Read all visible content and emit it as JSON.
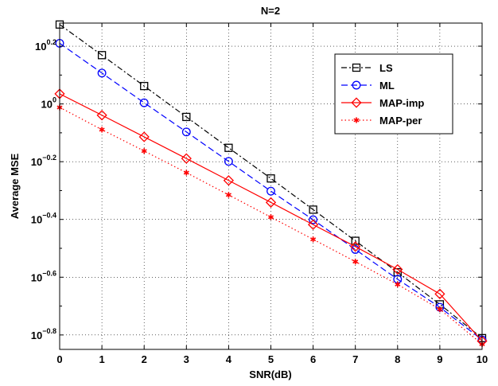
{
  "chart_data": {
    "type": "line",
    "title": "N=2",
    "xlabel": "SNR(dB)",
    "ylabel": "Average MSE",
    "x": [
      0,
      1,
      2,
      3,
      4,
      5,
      6,
      7,
      8,
      9,
      10
    ],
    "xlim": [
      0,
      10
    ],
    "xticks": [
      "0",
      "1",
      "2",
      "3",
      "4",
      "5",
      "6",
      "7",
      "8",
      "9",
      "10"
    ],
    "ylim_log10": [
      -0.85,
      0.28
    ],
    "yscale": "log",
    "yticks": [
      {
        "exponent": -0.8,
        "base": "10",
        "sup": "−0.8"
      },
      {
        "exponent": -0.6,
        "base": "10",
        "sup": "−0.6"
      },
      {
        "exponent": -0.4,
        "base": "10",
        "sup": "−0.4"
      },
      {
        "exponent": -0.2,
        "base": "10",
        "sup": "−0.2"
      },
      {
        "exponent": 0.0,
        "base": "10",
        "sup": "0"
      },
      {
        "exponent": 0.2,
        "base": "10",
        "sup": "0.2"
      }
    ],
    "grid": true,
    "legend_position": "top-right",
    "series": [
      {
        "name": "LS",
        "color": "#000000",
        "line_style": "dash-dot",
        "marker": "square",
        "log10_y": [
          0.275,
          0.169,
          0.062,
          -0.045,
          -0.152,
          -0.258,
          -0.366,
          -0.474,
          -0.583,
          -0.694,
          -0.811
        ]
      },
      {
        "name": "ML",
        "color": "#0000ff",
        "line_style": "dashed",
        "marker": "circle",
        "log10_y": [
          0.21,
          0.107,
          0.004,
          -0.097,
          -0.199,
          -0.302,
          -0.401,
          -0.504,
          -0.607,
          -0.704,
          -0.817
        ]
      },
      {
        "name": "MAP-imp",
        "color": "#ff0000",
        "line_style": "solid",
        "marker": "diamond",
        "log10_y": [
          0.035,
          -0.039,
          -0.114,
          -0.189,
          -0.265,
          -0.341,
          -0.418,
          -0.494,
          -0.573,
          -0.658,
          -0.821
        ]
      },
      {
        "name": "MAP-per",
        "color": "#ff0000",
        "line_style": "dotted",
        "marker": "asterisk",
        "log10_y": [
          -0.012,
          -0.089,
          -0.163,
          -0.238,
          -0.315,
          -0.392,
          -0.469,
          -0.546,
          -0.625,
          -0.711,
          -0.832
        ]
      }
    ]
  }
}
